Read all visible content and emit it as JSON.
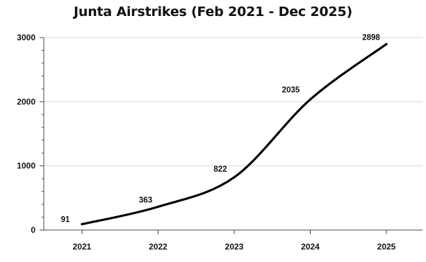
{
  "chart_data": {
    "type": "line",
    "title": "Junta Airstrikes (Feb 2021 - Dec 2025)",
    "xlabel": "",
    "ylabel": "",
    "categories": [
      "2021",
      "2022",
      "2023",
      "2024",
      "2025"
    ],
    "series": [
      {
        "values": [
          91,
          363,
          822,
          2035,
          2898
        ]
      }
    ],
    "data_labels": [
      "91",
      "363",
      "822",
      "2035",
      "2898"
    ],
    "yticks": [
      "0",
      "1000",
      "2000",
      "3000"
    ],
    "ylim": [
      0,
      3000
    ],
    "grid": true,
    "legend": "none",
    "colors": {
      "line": "#000000",
      "grid": "#d9d9d9",
      "axis": "#444444"
    }
  }
}
